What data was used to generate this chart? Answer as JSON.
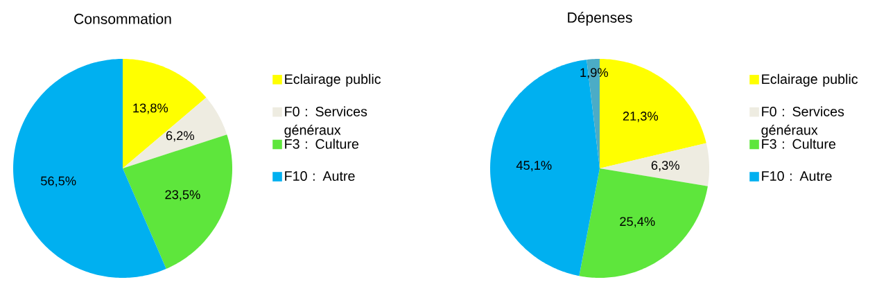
{
  "chart_data": [
    {
      "type": "pie",
      "title": "Consommation",
      "categories": [
        "Eclairage public",
        "F0 : Services généraux",
        "F3 : Culture",
        "F10 : Autre"
      ],
      "values": [
        13.8,
        6.2,
        23.5,
        56.5
      ],
      "colors": [
        "#ffff00",
        "#eeece1",
        "#5ee63c",
        "#00b0f0"
      ],
      "value_labels": [
        "13,8%",
        "6,2%",
        "23,5%",
        "56,5%"
      ],
      "legend": "right"
    },
    {
      "type": "pie",
      "title": "Dépenses",
      "categories": [
        "Eclairage public",
        "F0 : Services généraux",
        "F3 : Culture",
        "F10 : Autre",
        null
      ],
      "values": [
        21.3,
        6.3,
        25.4,
        45.1,
        1.9
      ],
      "colors": [
        "#ffff00",
        "#eeece1",
        "#5ee63c",
        "#00b0f0",
        "#4bacc6"
      ],
      "value_labels": [
        "21,3%",
        "6,3%",
        "25,4%",
        "45,1%",
        "1,9%"
      ],
      "legend": "right"
    }
  ]
}
